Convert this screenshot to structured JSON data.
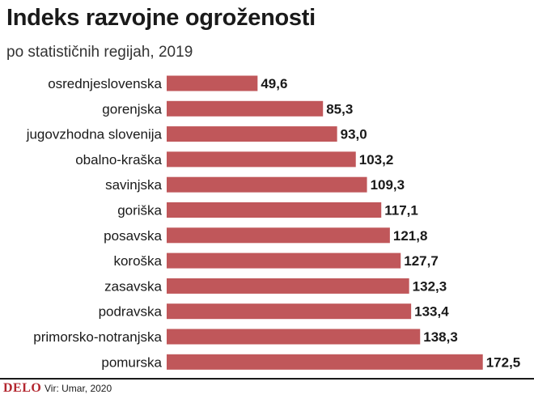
{
  "chart_data": {
    "type": "bar",
    "orientation": "horizontal",
    "title": "Indeks razvojne ogroženosti",
    "subtitle": "po statističnih regijah, 2019",
    "categories": [
      "osrednjeslovenska",
      "gorenjska",
      "jugovzhodna slovenija",
      "obalno-kraška",
      "savinjska",
      "goriška",
      "posavska",
      "koroška",
      "zasavska",
      "podravska",
      "primorsko-notranjska",
      "pomurska"
    ],
    "values": [
      49.6,
      85.3,
      93.0,
      103.2,
      109.3,
      117.1,
      121.8,
      127.7,
      132.3,
      133.4,
      138.3,
      172.5
    ],
    "value_labels": [
      "49,6",
      "85,3",
      "93,0",
      "103,2",
      "109,3",
      "117,1",
      "121,8",
      "127,7",
      "132,3",
      "133,4",
      "138,3",
      "172,5"
    ],
    "bar_color": "#c0575a",
    "grid": false,
    "legend": "none"
  },
  "footer": {
    "logo": "DELO",
    "source": "Vir: Umar, 2020"
  }
}
